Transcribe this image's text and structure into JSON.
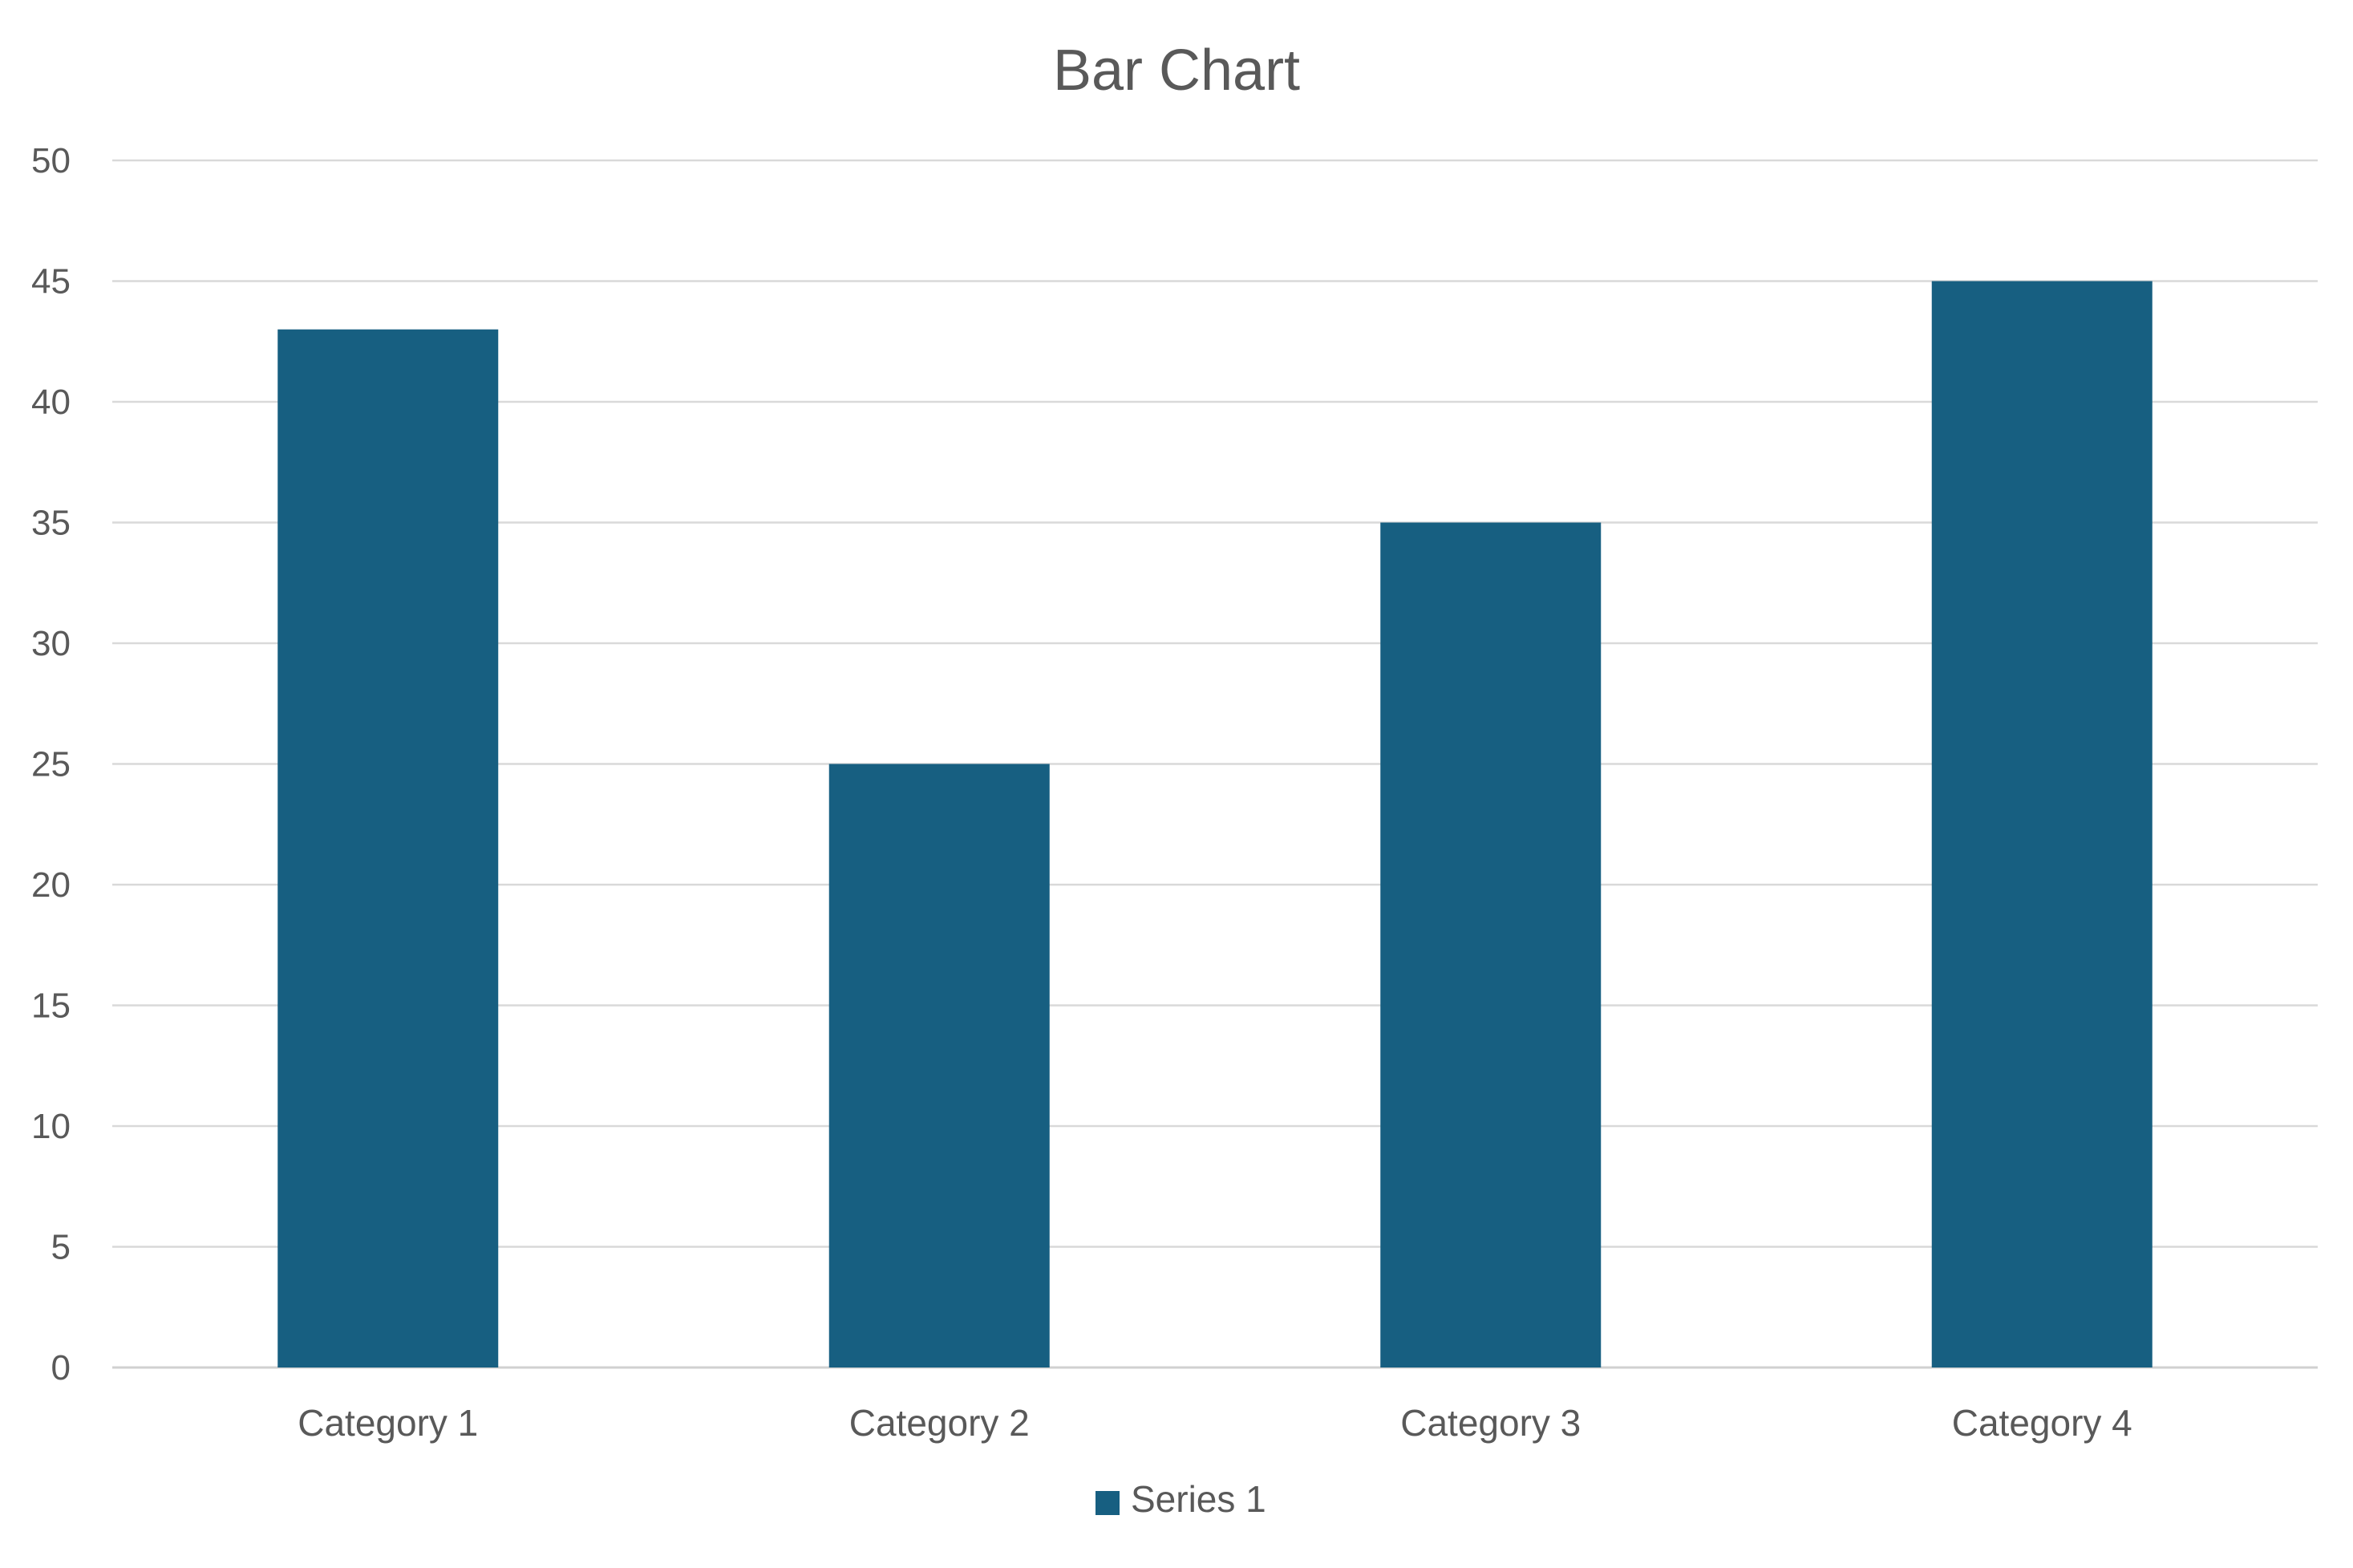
{
  "chart_data": {
    "type": "bar",
    "title": "Bar Chart",
    "xlabel": "",
    "ylabel": "",
    "categories": [
      "Category 1",
      "Category 2",
      "Category 3",
      "Category 4"
    ],
    "series": [
      {
        "name": "Series 1",
        "values": [
          43,
          25,
          35,
          45
        ],
        "color": "#175F81"
      }
    ],
    "ylim": [
      0,
      50
    ],
    "yticks": [
      0,
      5,
      10,
      15,
      20,
      25,
      30,
      35,
      40,
      45,
      50
    ],
    "grid": true,
    "legend": "bottom"
  }
}
